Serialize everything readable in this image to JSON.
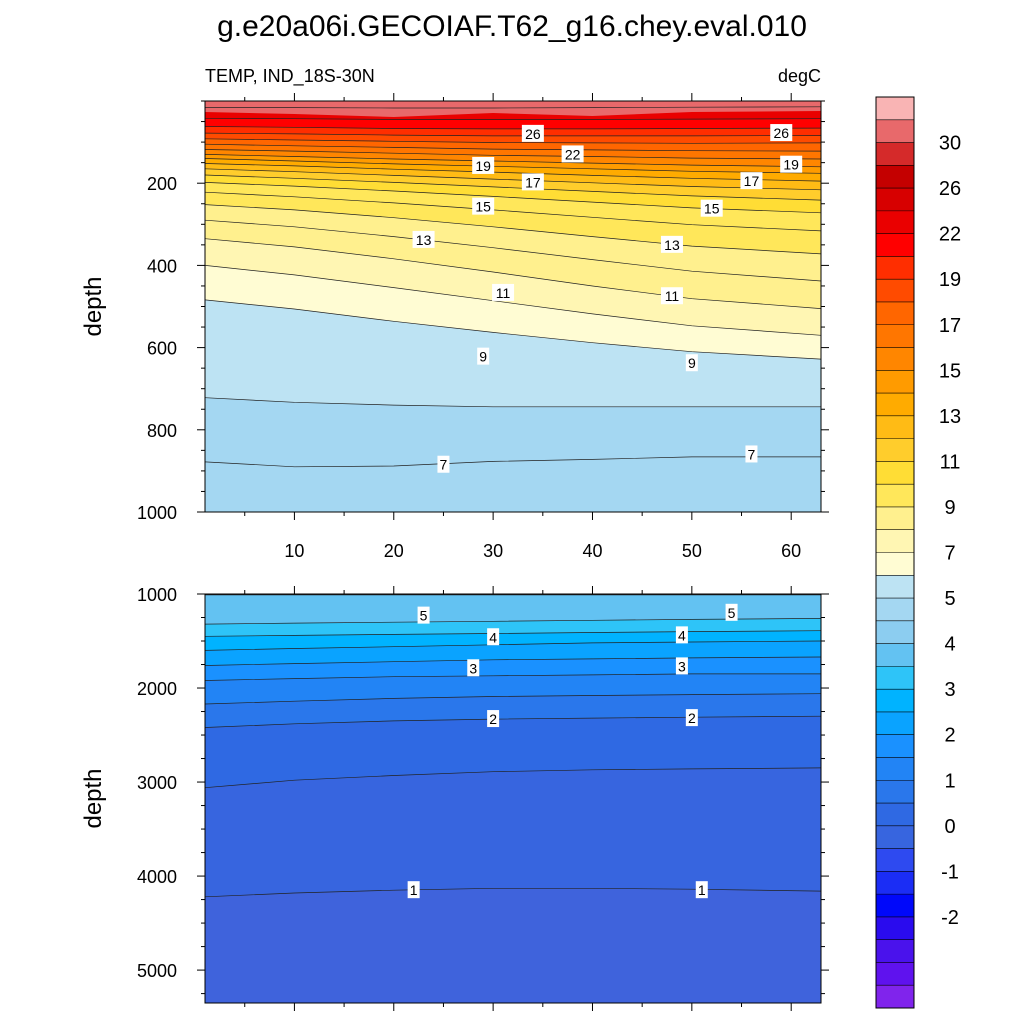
{
  "title": "g.e20a06i.GECOIAF.T62_g16.chey.eval.010",
  "subtitle_left": "TEMP, IND_18S-30N",
  "subtitle_right": "degC",
  "chart_data": [
    {
      "type": "contour",
      "panel": "upper",
      "ylabel": "depth",
      "xlim": [
        1,
        63
      ],
      "ylim": [
        1000,
        0
      ],
      "x_ticks": [
        10,
        20,
        30,
        40,
        50,
        60
      ],
      "y_ticks": [
        200,
        400,
        600,
        800,
        1000
      ],
      "x": [
        1,
        10,
        20,
        30,
        40,
        50,
        63
      ],
      "contours": [
        {
          "level": 28,
          "depth": [
            16,
            16,
            17,
            17,
            16,
            15,
            14
          ]
        },
        {
          "level": 26,
          "depth": [
            42,
            43,
            45,
            45,
            45,
            44,
            43
          ]
        },
        {
          "level": 25,
          "depth": [
            62,
            64,
            67,
            68,
            68,
            67,
            66
          ]
        },
        {
          "level": 24,
          "depth": [
            78,
            80,
            83,
            85,
            85,
            85,
            84
          ]
        },
        {
          "level": 23,
          "depth": [
            92,
            95,
            98,
            101,
            102,
            103,
            102
          ]
        },
        {
          "level": 22,
          "depth": [
            105,
            109,
            113,
            117,
            119,
            121,
            122
          ]
        },
        {
          "level": 21,
          "depth": [
            118,
            122,
            127,
            132,
            135,
            139,
            141
          ]
        },
        {
          "level": 20,
          "depth": [
            130,
            135,
            141,
            146,
            151,
            156,
            160
          ]
        },
        {
          "level": 19,
          "depth": [
            140,
            146,
            153,
            159,
            165,
            171,
            176
          ]
        },
        {
          "level": 18,
          "depth": [
            152,
            158,
            166,
            173,
            181,
            188,
            195
          ]
        },
        {
          "level": 17,
          "depth": [
            165,
            172,
            181,
            190,
            199,
            208,
            216
          ]
        },
        {
          "level": 16,
          "depth": [
            180,
            188,
            198,
            209,
            220,
            231,
            241
          ]
        },
        {
          "level": 15,
          "depth": [
            198,
            207,
            219,
            232,
            246,
            260,
            272
          ]
        },
        {
          "level": 14,
          "depth": [
            222,
            233,
            248,
            265,
            283,
            301,
            316
          ]
        },
        {
          "level": 13,
          "depth": [
            252,
            265,
            284,
            306,
            330,
            353,
            372
          ]
        },
        {
          "level": 12,
          "depth": [
            290,
            306,
            330,
            357,
            386,
            414,
            438
          ]
        },
        {
          "level": 11,
          "depth": [
            335,
            355,
            384,
            416,
            450,
            481,
            505
          ]
        },
        {
          "level": 10,
          "depth": [
            400,
            423,
            454,
            486,
            518,
            547,
            570
          ]
        },
        {
          "level": 9,
          "depth": [
            484,
            506,
            536,
            563,
            588,
            610,
            628
          ]
        },
        {
          "level": 8,
          "depth": [
            722,
            733,
            740,
            744,
            744,
            744,
            744
          ]
        },
        {
          "level": 7,
          "depth": [
            878,
            890,
            888,
            877,
            872,
            866,
            866
          ]
        }
      ],
      "labels": [
        {
          "text": "26",
          "x": 34,
          "depth": 80
        },
        {
          "text": "26",
          "x": 59,
          "depth": 78
        },
        {
          "text": "22",
          "x": 38,
          "depth": 130
        },
        {
          "text": "19",
          "x": 29,
          "depth": 158
        },
        {
          "text": "19",
          "x": 60,
          "depth": 155
        },
        {
          "text": "17",
          "x": 34,
          "depth": 198
        },
        {
          "text": "17",
          "x": 56,
          "depth": 195
        },
        {
          "text": "15",
          "x": 29,
          "depth": 257
        },
        {
          "text": "15",
          "x": 52,
          "depth": 262
        },
        {
          "text": "13",
          "x": 23,
          "depth": 338
        },
        {
          "text": "13",
          "x": 48,
          "depth": 350
        },
        {
          "text": "11",
          "x": 31,
          "depth": 467
        },
        {
          "text": "11",
          "x": 48,
          "depth": 475
        },
        {
          "text": "9",
          "x": 29,
          "depth": 622
        },
        {
          "text": "9",
          "x": 50,
          "depth": 638
        },
        {
          "text": "7",
          "x": 25,
          "depth": 885
        },
        {
          "text": "7",
          "x": 56,
          "depth": 860
        }
      ]
    },
    {
      "type": "contour",
      "panel": "lower",
      "ylabel": "depth",
      "xlim": [
        1,
        63
      ],
      "ylim": [
        5350,
        1000
      ],
      "y_ticks": [
        1000,
        2000,
        3000,
        4000,
        5000
      ],
      "x": [
        1,
        10,
        20,
        30,
        40,
        50,
        63
      ],
      "contours": [
        {
          "level": 6,
          "depth": [
            1010,
            1010,
            1010,
            1010,
            1010,
            1010,
            1010
          ]
        },
        {
          "level": 5,
          "depth": [
            1320,
            1310,
            1300,
            1290,
            1280,
            1270,
            1260
          ]
        },
        {
          "level": 4.5,
          "depth": [
            1450,
            1440,
            1430,
            1420,
            1410,
            1400,
            1390
          ]
        },
        {
          "level": 4,
          "depth": [
            1600,
            1580,
            1560,
            1540,
            1520,
            1510,
            1500
          ]
        },
        {
          "level": 3.5,
          "depth": [
            1760,
            1740,
            1720,
            1700,
            1690,
            1680,
            1670
          ]
        },
        {
          "level": 3,
          "depth": [
            1920,
            1900,
            1880,
            1870,
            1860,
            1850,
            1850
          ]
        },
        {
          "level": 2.5,
          "depth": [
            2170,
            2140,
            2110,
            2090,
            2080,
            2070,
            2060
          ]
        },
        {
          "level": 2,
          "depth": [
            2420,
            2380,
            2350,
            2330,
            2320,
            2310,
            2300
          ]
        },
        {
          "level": 1.5,
          "depth": [
            3060,
            2980,
            2930,
            2890,
            2870,
            2860,
            2850
          ]
        },
        {
          "level": 1,
          "depth": [
            4220,
            4180,
            4150,
            4130,
            4130,
            4140,
            4160
          ]
        }
      ],
      "labels": [
        {
          "text": "5",
          "x": 23,
          "depth": 1230
        },
        {
          "text": "5",
          "x": 54,
          "depth": 1200
        },
        {
          "text": "4",
          "x": 30,
          "depth": 1460
        },
        {
          "text": "4",
          "x": 49,
          "depth": 1440
        },
        {
          "text": "3",
          "x": 28,
          "depth": 1790
        },
        {
          "text": "3",
          "x": 49,
          "depth": 1770
        },
        {
          "text": "2",
          "x": 30,
          "depth": 2330
        },
        {
          "text": "2",
          "x": 50,
          "depth": 2320
        },
        {
          "text": "1",
          "x": 22,
          "depth": 4150
        },
        {
          "text": "1",
          "x": 51,
          "depth": 4150
        }
      ]
    }
  ],
  "colorbar": {
    "label_values": [
      "30",
      "26",
      "22",
      "19",
      "17",
      "15",
      "13",
      "11",
      "9",
      "7",
      "5",
      "4",
      "3",
      "2",
      "1",
      "0",
      "-1",
      "-2"
    ],
    "colors": [
      "#f9b4b4",
      "#e8696b",
      "#d52a2a",
      "#c40000",
      "#d70000",
      "#ea0000",
      "#ff0000",
      "#ff2e00",
      "#ff4b00",
      "#ff6600",
      "#ff7600",
      "#ff8600",
      "#ff9b00",
      "#ffab00",
      "#ffbb15",
      "#ffcd2c",
      "#ffdd35",
      "#ffe75a",
      "#fff08e",
      "#fff6b3",
      "#fffcd3",
      "#bde3f3",
      "#a4d7f2",
      "#8ccdf0",
      "#63c2f2",
      "#2ec4f8",
      "#00b3ff",
      "#0aa3ff",
      "#1a91ff",
      "#2284f5",
      "#2a77eb",
      "#2f69e3",
      "#3765df",
      "#2e4af0",
      "#1b2df5",
      "#0008fa",
      "#2a0bee",
      "#4a12ec",
      "#5f12ee",
      "#8024ec"
    ]
  }
}
